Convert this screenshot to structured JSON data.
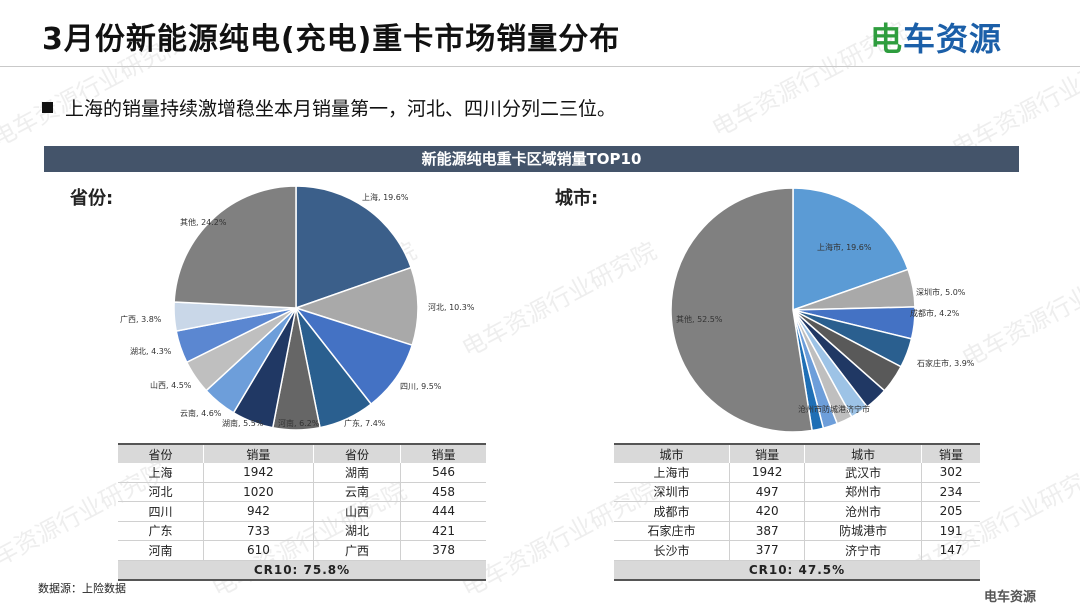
{
  "header": {
    "title": "3月份新能源纯电(充电)重卡市场销量分布",
    "logo_prefix": "电",
    "logo_rest": "车资源"
  },
  "bullet": "上海的销量持续激增稳坐本月销量第一，河北、四川分列二三位。",
  "banner": "新能源纯电重卡区域销量TOP10",
  "province_label": "省份:",
  "city_label": "城市:",
  "watermark": "电车资源行业研究院",
  "chart_data": [
    {
      "type": "pie",
      "title": "省份",
      "slices": [
        {
          "label": "上海",
          "value": 19.6,
          "text": "上海, 19.6%",
          "color": "#3b5f8a"
        },
        {
          "label": "河北",
          "value": 10.3,
          "text": "河北, 10.3%",
          "color": "#a9a9a9"
        },
        {
          "label": "四川",
          "value": 9.5,
          "text": "四川, 9.5%",
          "color": "#4472c4"
        },
        {
          "label": "广东",
          "value": 7.4,
          "text": "广东, 7.4%",
          "color": "#2a5f8f"
        },
        {
          "label": "河南",
          "value": 6.2,
          "text": "河南, 6.2%",
          "color": "#666666"
        },
        {
          "label": "湖南",
          "value": 5.5,
          "text": "湖南, 5.5%",
          "color": "#203864"
        },
        {
          "label": "云南",
          "value": 4.6,
          "text": "云南, 4.6%",
          "color": "#6d9eda"
        },
        {
          "label": "山西",
          "value": 4.5,
          "text": "山西, 4.5%",
          "color": "#bfbfbf"
        },
        {
          "label": "湖北",
          "value": 4.3,
          "text": "湖北, 4.3%",
          "color": "#5b87d1"
        },
        {
          "label": "广西",
          "value": 3.8,
          "text": "广西, 3.8%",
          "color": "#c9d7e8"
        },
        {
          "label": "其他",
          "value": 24.2,
          "text": "其他, 24.2%",
          "color": "#808080"
        }
      ]
    },
    {
      "type": "pie",
      "title": "城市",
      "slices": [
        {
          "label": "上海市",
          "value": 19.6,
          "text": "上海市, 19.6%",
          "color": "#5b9bd5"
        },
        {
          "label": "深圳市",
          "value": 5.0,
          "text": "深圳市, 5.0%",
          "color": "#a9a9a9"
        },
        {
          "label": "成都市",
          "value": 4.2,
          "text": "成都市, 4.2%",
          "color": "#4472c4"
        },
        {
          "label": "石家庄市",
          "value": 3.9,
          "text": "石家庄市, 3.9%",
          "color": "#2a5f8f"
        },
        {
          "label": "长沙市",
          "value": 3.8,
          "text": "",
          "color": "#595959"
        },
        {
          "label": "武汉市",
          "value": 3.1,
          "text": "",
          "color": "#203864"
        },
        {
          "label": "郑州市",
          "value": 2.4,
          "text": "",
          "color": "#9dc3e6"
        },
        {
          "label": "沧州市",
          "value": 2.1,
          "text": "",
          "color": "#bfbfbf"
        },
        {
          "label": "防城港市",
          "value": 1.9,
          "text": "",
          "color": "#6d9eda"
        },
        {
          "label": "济宁市",
          "value": 1.5,
          "text": "",
          "color": "#1f6fb5"
        },
        {
          "label": "其他",
          "value": 52.5,
          "text": "其他, 52.5%",
          "color": "#808080"
        }
      ],
      "overlap_text": "沧州市防城港济宁市"
    }
  ],
  "province_table": {
    "headers": [
      "省份",
      "销量",
      "省份",
      "销量"
    ],
    "rows": [
      [
        "上海",
        "1942",
        "湖南",
        "546"
      ],
      [
        "河北",
        "1020",
        "云南",
        "458"
      ],
      [
        "四川",
        "942",
        "山西",
        "444"
      ],
      [
        "广东",
        "733",
        "湖北",
        "421"
      ],
      [
        "河南",
        "610",
        "广西",
        "378"
      ]
    ],
    "cr10": "CR10: 75.8%"
  },
  "city_table": {
    "headers": [
      "城市",
      "销量",
      "城市",
      "销量"
    ],
    "rows": [
      [
        "上海市",
        "1942",
        "武汉市",
        "302"
      ],
      [
        "深圳市",
        "497",
        "郑州市",
        "234"
      ],
      [
        "成都市",
        "420",
        "沧州市",
        "205"
      ],
      [
        "石家庄市",
        "387",
        "防城港市",
        "191"
      ],
      [
        "长沙市",
        "377",
        "济宁市",
        "147"
      ]
    ],
    "cr10": "CR10: 47.5%"
  },
  "footer": {
    "source": "数据源：上险数据",
    "corner_mark": "电车资源"
  }
}
